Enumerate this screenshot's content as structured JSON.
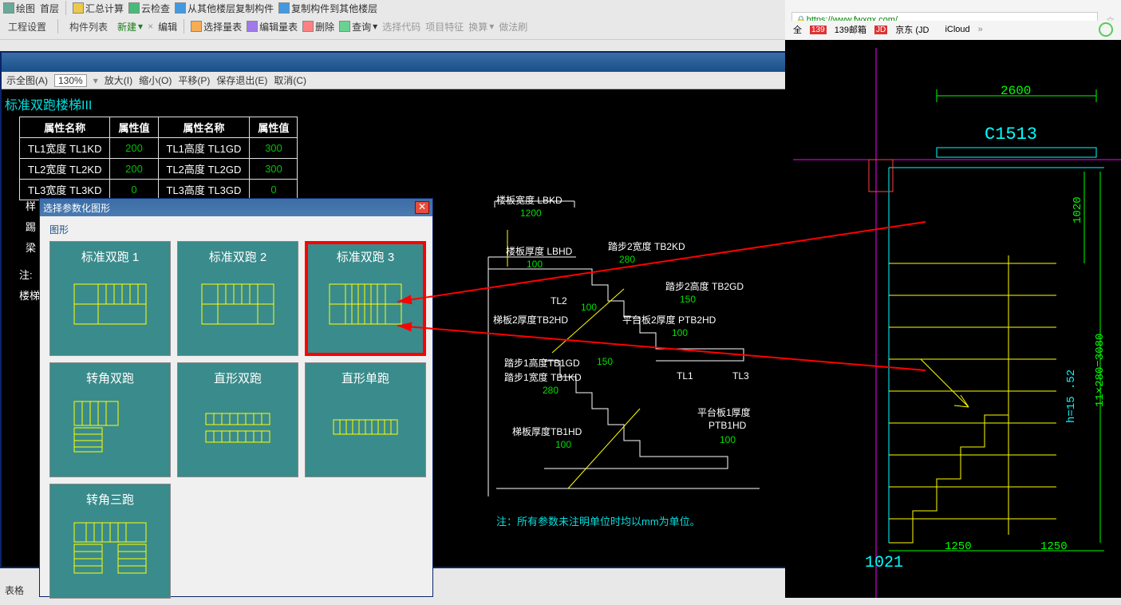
{
  "toolbar": {
    "row1": [
      "绘图",
      "首层",
      "汇总计算",
      "云检查",
      "从其他楼层复制构件",
      "复制构件到其他楼层"
    ],
    "row1_right": [
      "选择量表",
      "编辑量表",
      "删除",
      "查询",
      "选择代码",
      "项目特征",
      "换算",
      "做法刷"
    ],
    "label_left": "工程设置",
    "label_mid": "构件列表",
    "new_btn": "新建",
    "edit_btn": "编辑"
  },
  "browser": {
    "url": "https://www.fwxgx.com/",
    "links": [
      "全",
      "139邮箱",
      "京东 (JD",
      "iCloud"
    ]
  },
  "blue_window": {
    "toolbar": [
      "示全图(A)",
      "放大(I)",
      "缩小(O)",
      "平移(P)",
      "保存退出(E)",
      "取消(C)"
    ],
    "zoom": "130%",
    "title": "标准双跑楼梯III",
    "bottom_note": "注：所有参数未注明单位时均以mm为单位。"
  },
  "prop_table": {
    "headers": [
      "属性名称",
      "属性值",
      "属性名称",
      "属性值"
    ],
    "rows": [
      [
        "TL1宽度 TL1KD",
        "200",
        "TL1高度 TL1GD",
        "300"
      ],
      [
        "TL2宽度 TL2KD",
        "200",
        "TL2高度 TL2GD",
        "300"
      ],
      [
        "TL3宽度 TL3KD",
        "0",
        "TL3高度 TL3GD",
        "0"
      ]
    ]
  },
  "left_notes": {
    "note1_prefix": "样",
    "note2_prefix": "踢",
    "note3_prefix": "梁",
    "note4": "注:",
    "note5": "楼梯"
  },
  "diagram": {
    "labels": {
      "lbkd": "楼板宽度 LBKD",
      "lbkd_v": "1200",
      "lbhd": "楼板厚度 LBHD",
      "lbhd_v": "100",
      "tb2kd": "踏步2宽度 TB2KD",
      "tb2kd_v": "280",
      "tb2gd": "踏步2高度 TB2GD",
      "tb2gd_v": "150",
      "tl2": "TL2",
      "tl2_v": "100",
      "tb2hd": "梯板2厚度TB2HD",
      "ptb2hd": "平台板2厚度 PTB2HD",
      "ptb2hd_v": "100",
      "tb1gd": "踏步1高度TB1GD",
      "tb1gd_v": "150",
      "tb1kd": "踏步1宽度 TB1KD",
      "tb1kd_v": "280",
      "tl1": "TL1",
      "tl3": "TL3",
      "tb1hd": "梯板厚度TB1HD",
      "tb1hd_v": "100",
      "ptb1hd": "平台板1厚度",
      "ptb1hd2": "PTB1HD",
      "ptb1hd_v": "100"
    }
  },
  "dialog": {
    "title": "选择参数化图形",
    "group": "图形",
    "shapes": [
      "标准双跑 1",
      "标准双跑 2",
      "标准双跑 3",
      "转角双跑",
      "直形双跑",
      "直形单跑",
      "转角三跑"
    ],
    "selected_index": 2
  },
  "cad_right": {
    "dim_top": "2600",
    "dim_mid": "C1513",
    "dim_right1": "1020",
    "dim_right2": "11×280=3080",
    "dim_right3": "h=15 .52",
    "dim_bot1": "1021",
    "dim_bot2": "1250",
    "dim_bot3": "1250",
    "colors": {
      "magenta": "#ff00ff",
      "cyan": "#00ffff",
      "green": "#00ff00",
      "yellow": "#ffff00",
      "red": "#ff0000"
    }
  },
  "bottom_stub": "表格"
}
